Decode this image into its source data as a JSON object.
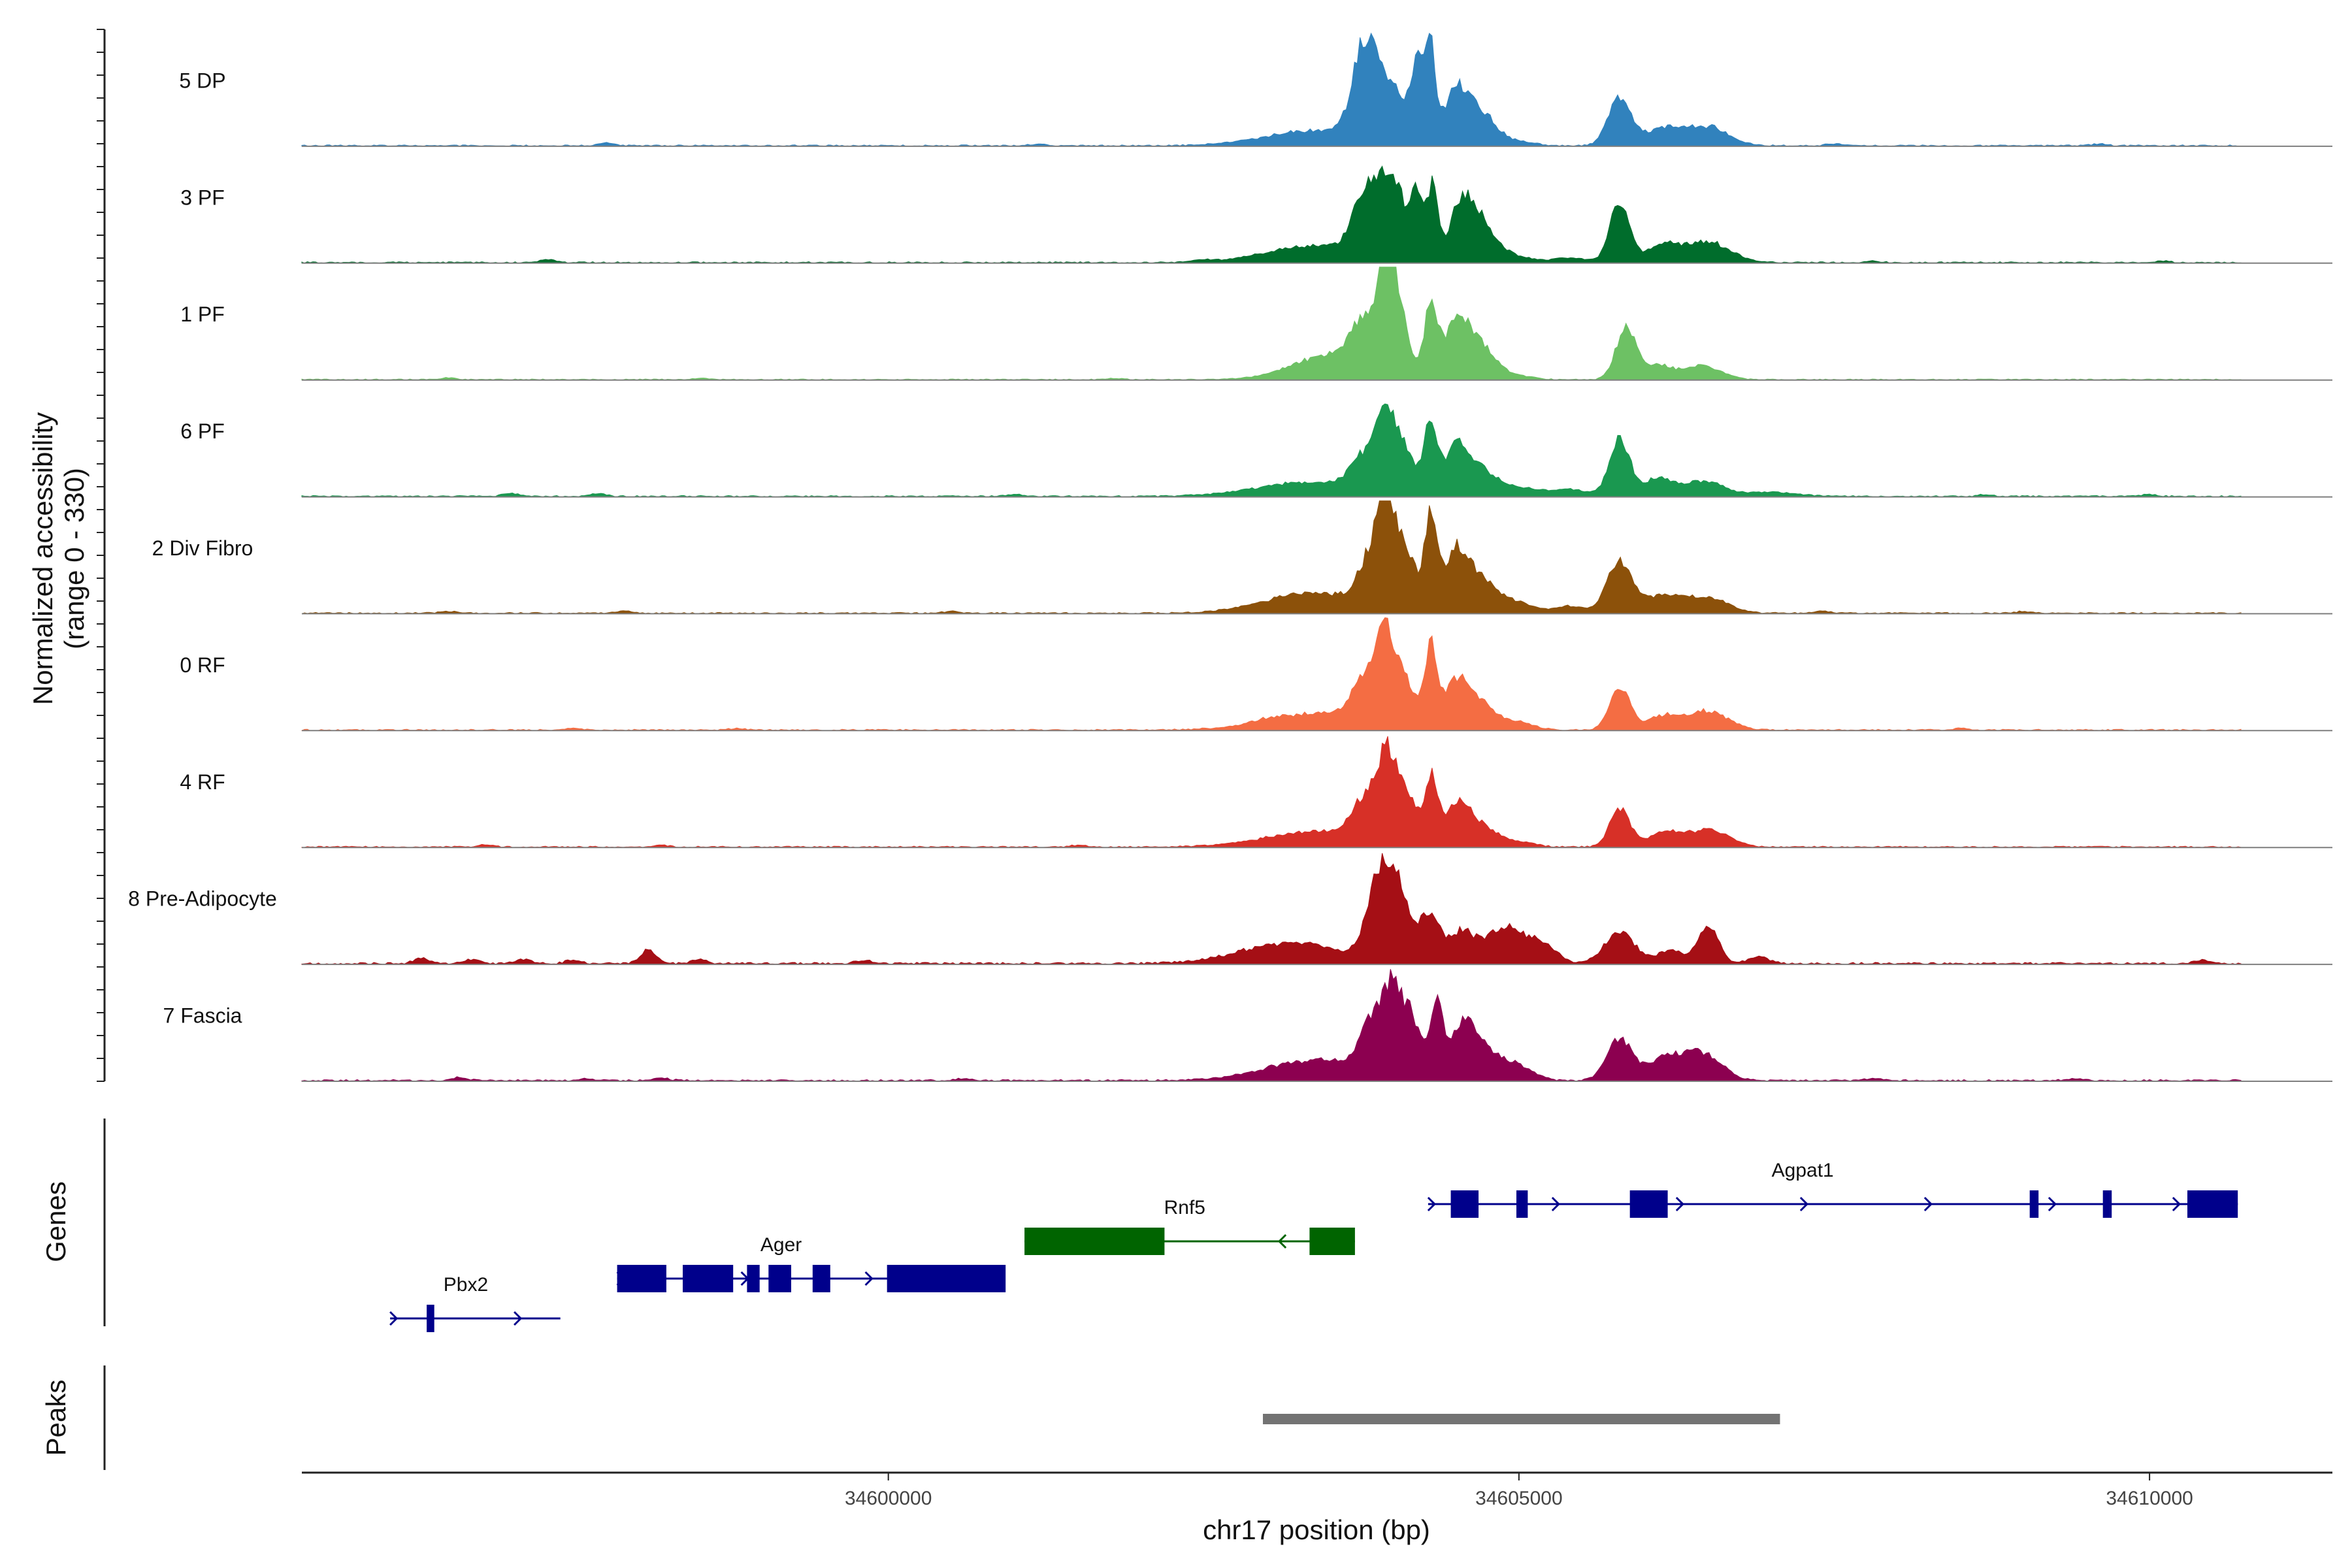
{
  "chart_data": {
    "type": "area",
    "title": "",
    "chromosome": "chr17",
    "xlabel": "chr17 position (bp)",
    "ylabel_line1": "Normalized accessibility",
    "ylabel_line2": "(range 0 - 330)",
    "ylim": [
      0,
      330
    ],
    "xlim": [
      34595350,
      34611450
    ],
    "x_ticks": [
      34600000,
      34605000,
      34610000
    ],
    "x_tick_labels": [
      "34600000",
      "34605000",
      "34610000"
    ],
    "genes_panel_label": "Genes",
    "peaks_panel_label": "Peaks",
    "baseline_noise": 4,
    "tracks": [
      {
        "name": "5 DP",
        "color": "#3182bd",
        "noise": 4,
        "peaks": [
          [
            34603400,
            45,
            400
          ],
          [
            34603760,
            150,
            90
          ],
          [
            34603850,
            180,
            110
          ],
          [
            34604050,
            110,
            80
          ],
          [
            34604200,
            220,
            50
          ],
          [
            34604300,
            260,
            40
          ],
          [
            34604500,
            150,
            100
          ],
          [
            34604700,
            90,
            120
          ],
          [
            34605000,
            12,
            120
          ],
          [
            34605800,
            140,
            90
          ],
          [
            34606150,
            50,
            140
          ],
          [
            34606500,
            55,
            160
          ]
        ],
        "spikes": [
          [
            34597750,
            8
          ],
          [
            34601200,
            6
          ],
          [
            34607500,
            6
          ],
          [
            34609600,
            5
          ]
        ]
      },
      {
        "name": "3 PF",
        "color": "#006d2c",
        "noise": 4,
        "peaks": [
          [
            34603400,
            50,
            400
          ],
          [
            34603750,
            110,
            90
          ],
          [
            34603900,
            190,
            100
          ],
          [
            34604050,
            140,
            80
          ],
          [
            34604200,
            190,
            50
          ],
          [
            34604320,
            220,
            40
          ],
          [
            34604550,
            160,
            100
          ],
          [
            34604720,
            90,
            120
          ],
          [
            34605000,
            15,
            120
          ],
          [
            34605400,
            14,
            130
          ],
          [
            34605800,
            170,
            80
          ],
          [
            34606150,
            50,
            130
          ],
          [
            34606500,
            60,
            170
          ]
        ],
        "spikes": [
          [
            34597300,
            8
          ],
          [
            34602500,
            5
          ],
          [
            34607800,
            5
          ],
          [
            34610100,
            5
          ]
        ]
      },
      {
        "name": "1 PF",
        "color": "#6dc164",
        "noise": 3,
        "peaks": [
          [
            34603500,
            70,
            300
          ],
          [
            34603800,
            150,
            120
          ],
          [
            34603950,
            240,
            60
          ],
          [
            34604050,
            170,
            80
          ],
          [
            34604300,
            210,
            50
          ],
          [
            34604500,
            160,
            100
          ],
          [
            34604700,
            90,
            120
          ],
          [
            34605000,
            10,
            120
          ],
          [
            34605850,
            150,
            80
          ],
          [
            34606100,
            40,
            110
          ],
          [
            34606450,
            40,
            150
          ]
        ],
        "spikes": [
          [
            34596500,
            5
          ],
          [
            34598500,
            4
          ],
          [
            34601800,
            4
          ]
        ]
      },
      {
        "name": "6 PF",
        "color": "#1a9850",
        "noise": 4,
        "peaks": [
          [
            34603300,
            40,
            400
          ],
          [
            34603800,
            110,
            120
          ],
          [
            34603950,
            180,
            70
          ],
          [
            34604100,
            130,
            80
          ],
          [
            34604300,
            200,
            50
          ],
          [
            34604500,
            140,
            100
          ],
          [
            34604700,
            70,
            120
          ],
          [
            34605000,
            25,
            150
          ],
          [
            34605400,
            20,
            150
          ],
          [
            34605800,
            170,
            80
          ],
          [
            34606100,
            50,
            110
          ],
          [
            34606450,
            45,
            160
          ],
          [
            34607000,
            12,
            200
          ]
        ],
        "spikes": [
          [
            34597000,
            10
          ],
          [
            34597700,
            8
          ],
          [
            34601000,
            5
          ],
          [
            34608700,
            5
          ],
          [
            34610000,
            6
          ]
        ]
      },
      {
        "name": "2 Div Fibro",
        "color": "#8c510a",
        "noise": 4,
        "peaks": [
          [
            34603400,
            60,
            400
          ],
          [
            34603850,
            160,
            100
          ],
          [
            34603950,
            260,
            60
          ],
          [
            34604100,
            170,
            80
          ],
          [
            34604300,
            270,
            50
          ],
          [
            34604500,
            180,
            100
          ],
          [
            34604720,
            90,
            120
          ],
          [
            34605000,
            30,
            120
          ],
          [
            34605400,
            20,
            130
          ],
          [
            34605800,
            150,
            100
          ],
          [
            34606150,
            50,
            140
          ],
          [
            34606500,
            45,
            160
          ]
        ],
        "spikes": [
          [
            34596500,
            6
          ],
          [
            34597900,
            6
          ],
          [
            34600500,
            5
          ],
          [
            34607400,
            6
          ],
          [
            34609000,
            5
          ]
        ]
      },
      {
        "name": "0 RF",
        "color": "#f46d43",
        "noise": 4,
        "peaks": [
          [
            34603400,
            50,
            400
          ],
          [
            34603800,
            140,
            110
          ],
          [
            34603950,
            210,
            70
          ],
          [
            34604100,
            130,
            80
          ],
          [
            34604300,
            220,
            50
          ],
          [
            34604500,
            140,
            100
          ],
          [
            34604700,
            70,
            120
          ],
          [
            34605000,
            22,
            120
          ],
          [
            34605800,
            130,
            80
          ],
          [
            34606150,
            40,
            130
          ],
          [
            34606500,
            55,
            160
          ]
        ],
        "spikes": [
          [
            34597500,
            6
          ],
          [
            34598800,
            5
          ],
          [
            34603000,
            6
          ],
          [
            34608500,
            5
          ]
        ]
      },
      {
        "name": "4 RF",
        "color": "#d73027",
        "noise": 4,
        "peaks": [
          [
            34603400,
            45,
            400
          ],
          [
            34603800,
            130,
            110
          ],
          [
            34603950,
            200,
            70
          ],
          [
            34604100,
            160,
            80
          ],
          [
            34604300,
            190,
            50
          ],
          [
            34604500,
            120,
            100
          ],
          [
            34604700,
            60,
            120
          ],
          [
            34605000,
            15,
            120
          ],
          [
            34605800,
            110,
            80
          ],
          [
            34606150,
            40,
            130
          ],
          [
            34606500,
            50,
            160
          ]
        ],
        "spikes": [
          [
            34596800,
            6
          ],
          [
            34598200,
            5
          ],
          [
            34601500,
            5
          ]
        ]
      },
      {
        "name": "8 Pre-Adipocyte",
        "color": "#a50f15",
        "noise": 6,
        "peaks": [
          [
            34603200,
            60,
            400
          ],
          [
            34603900,
            220,
            100
          ],
          [
            34604050,
            180,
            100
          ],
          [
            34604300,
            130,
            80
          ],
          [
            34604550,
            90,
            100
          ],
          [
            34604900,
            110,
            150
          ],
          [
            34605200,
            50,
            100
          ],
          [
            34605800,
            90,
            120
          ],
          [
            34606200,
            40,
            100
          ],
          [
            34606500,
            110,
            80
          ],
          [
            34606900,
            20,
            80
          ]
        ],
        "spikes": [
          [
            34596300,
            15
          ],
          [
            34596700,
            12
          ],
          [
            34597100,
            12
          ],
          [
            34597500,
            10
          ],
          [
            34598100,
            40
          ],
          [
            34598500,
            12
          ],
          [
            34599800,
            10
          ],
          [
            34610400,
            10
          ]
        ]
      },
      {
        "name": "7 Fascia",
        "color": "#8c0050",
        "noise": 5,
        "peaks": [
          [
            34603400,
            60,
            400
          ],
          [
            34603850,
            150,
            100
          ],
          [
            34604000,
            200,
            70
          ],
          [
            34604150,
            170,
            80
          ],
          [
            34604350,
            210,
            50
          ],
          [
            34604550,
            150,
            100
          ],
          [
            34604750,
            80,
            120
          ],
          [
            34605000,
            40,
            120
          ],
          [
            34605800,
            120,
            100
          ],
          [
            34606150,
            60,
            130
          ],
          [
            34606450,
            80,
            150
          ]
        ],
        "spikes": [
          [
            34596600,
            10
          ],
          [
            34597600,
            6
          ],
          [
            34598200,
            8
          ],
          [
            34600600,
            6
          ],
          [
            34607800,
            6
          ],
          [
            34609400,
            6
          ]
        ]
      }
    ],
    "genes": [
      {
        "name": "Pbx2",
        "color": "#00008b",
        "strand": "+",
        "row": 3,
        "start": 34596050,
        "end": 34597400,
        "exons": [
          [
            34596340,
            34596400
          ]
        ],
        "label_pos": 34596650
      },
      {
        "name": "Ager",
        "color": "#00008b",
        "strand": "+",
        "row": 2,
        "start": 34597850,
        "end": 34600900,
        "exons": [
          [
            34597850,
            34598240
          ],
          [
            34598370,
            34598770
          ],
          [
            34598880,
            34598980
          ],
          [
            34599050,
            34599230
          ],
          [
            34599400,
            34599540
          ],
          [
            34599990,
            34600930
          ]
        ],
        "label_pos": 34599150
      },
      {
        "name": "Rnf5",
        "color": "#006400",
        "strand": "-",
        "row": 1,
        "start": 34601080,
        "end": 34603700,
        "exons": [
          [
            34601080,
            34602190
          ],
          [
            34603340,
            34603700
          ]
        ],
        "label_pos": 34602350
      },
      {
        "name": "Agpat1",
        "color": "#00008b",
        "strand": "+",
        "row": 0,
        "start": 34604280,
        "end": 34610700,
        "exons": [
          [
            34604460,
            34604680
          ],
          [
            34604980,
            34605070
          ],
          [
            34605880,
            34606180
          ],
          [
            34609050,
            34609120
          ],
          [
            34609630,
            34609700
          ],
          [
            34610300,
            34610700
          ]
        ],
        "label_pos": 34607250
      }
    ],
    "peaks_regions": [
      {
        "start": 34602970,
        "end": 34607070,
        "color": "#737373"
      }
    ]
  }
}
